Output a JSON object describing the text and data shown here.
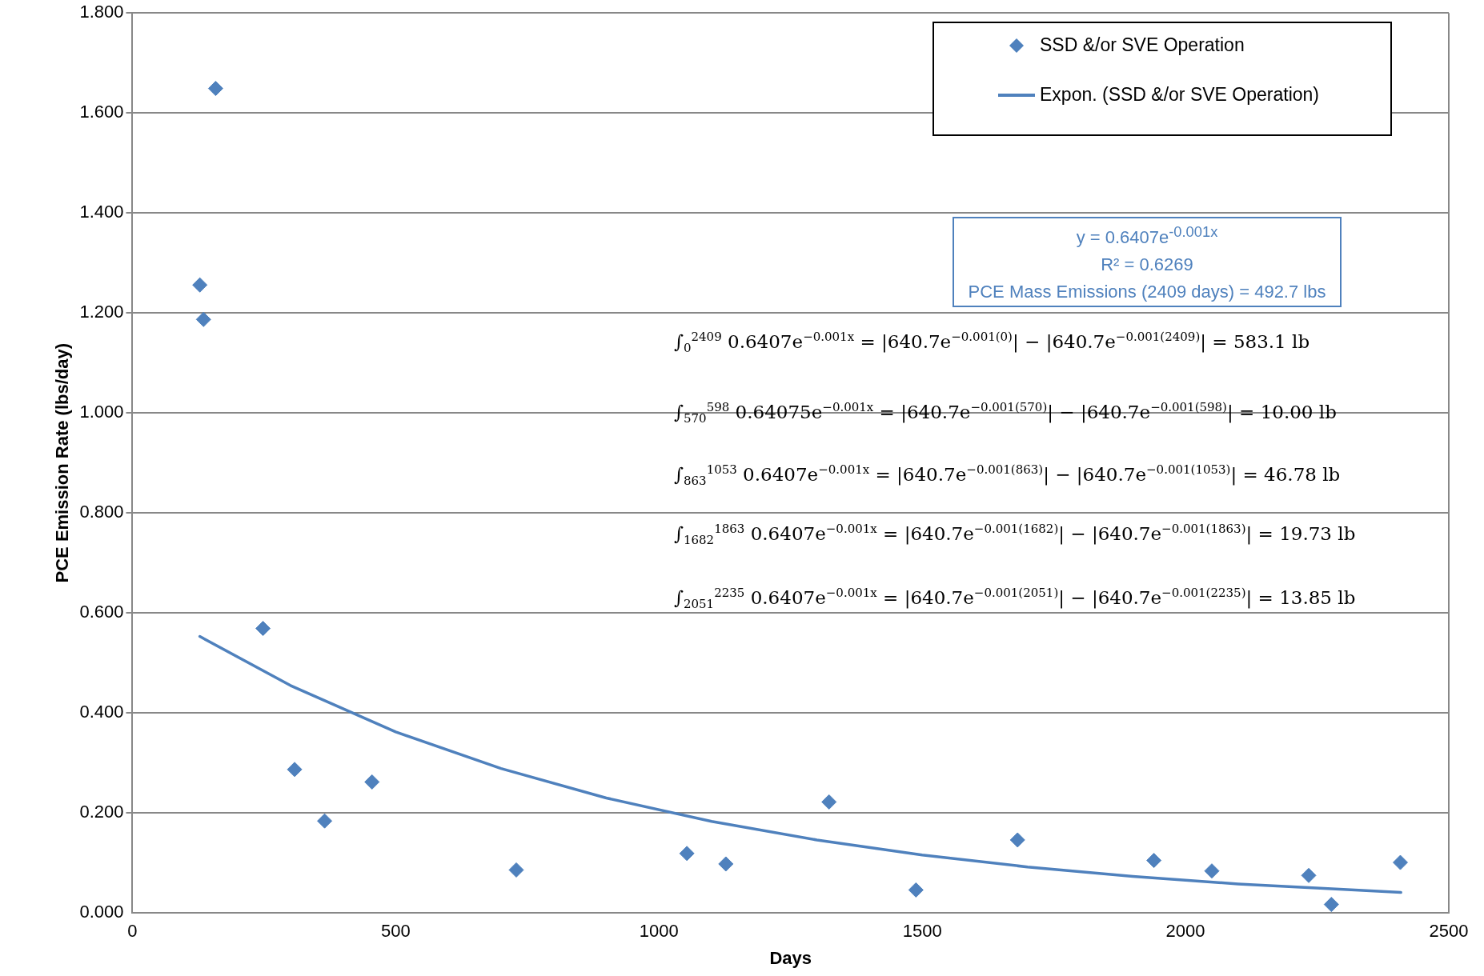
{
  "chart_data": {
    "type": "scatter",
    "xlabel": "Days",
    "ylabel": "PCE Emission Rate (lbs/day)",
    "xlim": [
      0,
      2500
    ],
    "xticks": [
      0,
      500,
      1000,
      1500,
      2000,
      2500
    ],
    "ylim": [
      0,
      1.8
    ],
    "yticks": [
      {
        "value": 0,
        "label": "0.000"
      },
      {
        "value": 0.2,
        "label": "0.200"
      },
      {
        "value": 0.4,
        "label": "0.400"
      },
      {
        "value": 0.6,
        "label": "0.600"
      },
      {
        "value": 0.8,
        "label": "0.800"
      },
      {
        "value": 1,
        "label": "1.000"
      },
      {
        "value": 1.2,
        "label": "1.200"
      },
      {
        "value": 1.4,
        "label": "1.400"
      },
      {
        "value": 1.6,
        "label": "1.600"
      },
      {
        "value": 1.8,
        "label": "1.800"
      }
    ],
    "grid": "y",
    "legend": "top right",
    "series": [
      {
        "name": "SSD &/or SVE Operation",
        "type": "scatter",
        "marker": "diamond",
        "color": "#4f81bd",
        "x": [
          128,
          135,
          158,
          248,
          308,
          365,
          455,
          729,
          1053,
          1127,
          1323,
          1488,
          1681,
          1940,
          2050,
          2234,
          2277,
          2408
        ],
        "values": [
          1.256,
          1.187,
          1.649,
          0.569,
          0.287,
          0.184,
          0.262,
          0.086,
          0.119,
          0.098,
          0.222,
          0.046,
          0.146,
          0.105,
          0.084,
          0.075,
          0.017,
          0.101
        ]
      },
      {
        "name": "Expon. (SSD &/or SVE Operation)",
        "type": "line",
        "marker": "none",
        "color": "#4f81bd",
        "x": [
          128,
          300,
          500,
          700,
          900,
          1100,
          1300,
          1500,
          1700,
          1900,
          2100,
          2300,
          2409
        ],
        "values": [
          0.553,
          0.455,
          0.362,
          0.289,
          0.23,
          0.183,
          0.146,
          0.116,
          0.092,
          0.073,
          0.058,
          0.047,
          0.041
        ]
      }
    ],
    "annotations": [
      "y = 0.6407e$^{-0.001x}$",
      "R² = 0.6269",
      "PCE Mass Emissions (2409 days) = 492.7 lbs",
      "∫$_{0}$$^{2409}$ 0.6407e$^{−0.001x}$ = |640.7e$^{−0.001(0)}$| − |640.7e$^{−0.001(2409)}$| = 583.1 lb",
      "∫$_{570}$$^{598}$ 0.64075e$^{−0.001x}$ = |640.7e$^{−0.001(570)}$| − |640.7e$^{−0.001(598)}$| = 10.00 lb",
      "∫$_{863}$$^{1053}$ 0.6407e$^{−0.001x}$ = |640.7e$^{−0.001(863)}$| − |640.7e$^{−0.001(1053)}$| = 46.78 lb",
      "∫$_{1682}$$^{1863}$ 0.6407e$^{−0.001x}$ = |640.7e$^{−0.001(1682)}$| − |640.7e$^{−0.001(1863)}$| = 19.73 lb",
      "∫$_{2051}$$^{2235}$ 0.6407e$^{−0.001x}$ = |640.7e$^{−0.001(2051)}$| − |640.7e$^{−0.001(2235)}$| = 13.85 lb"
    ]
  }
}
